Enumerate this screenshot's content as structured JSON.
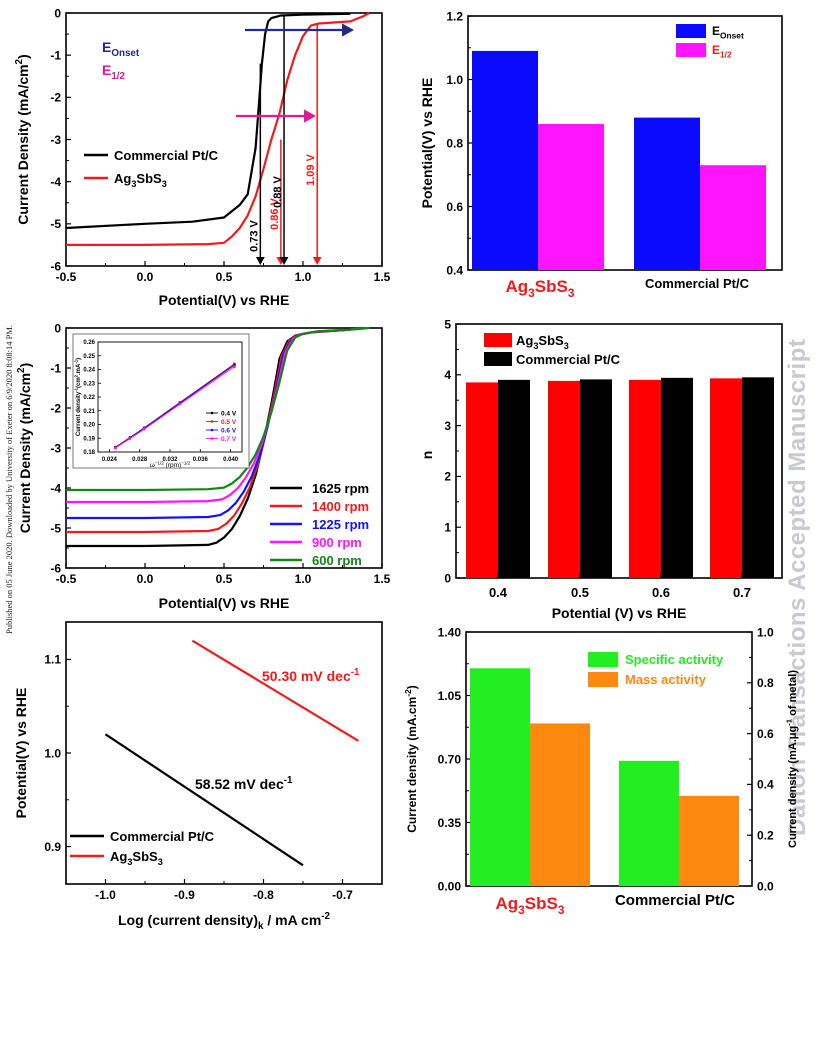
{
  "side_note": "Published on 05 June 2020. Downloaded by University of Exeter on 6/9/2020 8:08:14 PM.",
  "watermark": "Dalton Transactions Accepted Manuscript",
  "chart_data": [
    {
      "id": "lsv",
      "type": "line",
      "xlabel": "Potential(V) vs RHE",
      "ylabel": "Current Density  (mA/cm",
      "ylabel_sup": "2",
      "ylabel_end": ")",
      "xlim": [
        -0.5,
        1.5
      ],
      "ylim": [
        -6,
        0
      ],
      "xticks": [
        -0.5,
        0.0,
        0.5,
        1.0,
        1.5
      ],
      "xtick_labels": [
        "-0.5",
        "0.0",
        "0.5",
        "1.0",
        "1.5"
      ],
      "yticks": [
        0,
        -1,
        -2,
        -3,
        -4,
        -5,
        -6
      ],
      "ytick_labels": [
        "0",
        "-1",
        "-2",
        "-3",
        "-4",
        "-5",
        "-6"
      ],
      "series": [
        {
          "name": "Commercial Pt/C",
          "color": "#000000",
          "x": [
            -0.5,
            0.0,
            0.3,
            0.5,
            0.6,
            0.65,
            0.7,
            0.72,
            0.74,
            0.76,
            0.78,
            0.8,
            0.83,
            0.86,
            1.0,
            1.3
          ],
          "y": [
            -5.1,
            -5.0,
            -4.95,
            -4.85,
            -4.55,
            -4.3,
            -3.2,
            -2.2,
            -1.2,
            -0.5,
            -0.2,
            -0.12,
            -0.09,
            -0.06,
            -0.04,
            -0.02
          ]
        },
        {
          "name": "Ag3SbS3",
          "color": "#ee1c1c",
          "x": [
            -0.5,
            0.0,
            0.4,
            0.5,
            0.55,
            0.6,
            0.65,
            0.7,
            0.75,
            0.8,
            0.85,
            0.9,
            0.95,
            1.0,
            1.05,
            1.1,
            1.3,
            1.38,
            1.42
          ],
          "y": [
            -5.5,
            -5.5,
            -5.48,
            -5.45,
            -5.3,
            -5.1,
            -4.8,
            -4.35,
            -3.7,
            -3.0,
            -2.4,
            -1.6,
            -1.0,
            -0.55,
            -0.3,
            -0.25,
            -0.2,
            -0.08,
            0.0
          ]
        }
      ],
      "annotations": [
        {
          "text": "E",
          "sub": "Onset",
          "color": "#1f2a8a"
        },
        {
          "text": "E",
          "sub": "1/2",
          "color": "#e0199b"
        }
      ],
      "markers": [
        {
          "label": "0.73 V",
          "x": 0.73,
          "color": "#000000"
        },
        {
          "label": "0.86 V",
          "x": 0.86,
          "color": "#ee1c1c"
        },
        {
          "label": "0.88 V",
          "x": 0.88,
          "color": "#000000"
        },
        {
          "label": "1.09 V",
          "x": 1.09,
          "color": "#ee1c1c"
        }
      ]
    },
    {
      "id": "bar-onset",
      "type": "bar",
      "ylabel": "Potential(V) vs RHE",
      "ylim": [
        0.4,
        1.2
      ],
      "yticks": [
        0.4,
        0.6,
        0.8,
        1.0,
        1.2
      ],
      "ytick_labels": [
        "0.4",
        "0.6",
        "0.8",
        "1.0",
        "1.2"
      ],
      "categories": [
        {
          "label": "Ag",
          "parts": [
            [
              "Ag",
              ""
            ],
            [
              "3",
              "sub"
            ],
            [
              "SbS",
              ""
            ],
            [
              "3",
              "sub"
            ]
          ],
          "color": "#ee1c1c"
        },
        {
          "label": "Commercial Pt/C",
          "parts": [
            [
              "Commercial Pt/C",
              ""
            ]
          ],
          "color": "#000000"
        }
      ],
      "series": [
        {
          "name": "E",
          "sub": "Onset",
          "color": "#0a0aff",
          "values": [
            1.09,
            0.88
          ]
        },
        {
          "name": "E",
          "sub": "1/2",
          "color": "#ff14ff",
          "values": [
            0.86,
            0.73
          ]
        }
      ],
      "legend": "top-right"
    },
    {
      "id": "rde",
      "type": "line",
      "xlabel": "Potential(V) vs RHE",
      "ylabel": "Current Density  (mA/cm",
      "ylabel_sup": "2",
      "ylabel_end": ")",
      "xlim": [
        -0.5,
        1.5
      ],
      "ylim": [
        -6,
        0
      ],
      "xticks": [
        -0.5,
        0.0,
        0.5,
        1.0,
        1.5
      ],
      "xtick_labels": [
        "-0.5",
        "0.0",
        "0.5",
        "1.0",
        "1.5"
      ],
      "yticks": [
        0,
        -1,
        -2,
        -3,
        -4,
        -5,
        -6
      ],
      "ytick_labels": [
        "0",
        "-1",
        "-2",
        "-3",
        "-4",
        "-5",
        "-6"
      ],
      "series": [
        {
          "name": "1625 rpm",
          "color": "#000000",
          "limit": -5.45
        },
        {
          "name": "1400 rpm",
          "color": "#ee1c1c",
          "limit": -5.1
        },
        {
          "name": "1225 rpm",
          "color": "#1414ee",
          "limit": -4.75
        },
        {
          "name": "900 rpm",
          "color": "#ff14ff",
          "limit": -4.35
        },
        {
          "name": "600 rpm",
          "color": "#118811",
          "limit": -4.05
        }
      ],
      "curve_shape": {
        "x": [
          -0.5,
          0.0,
          0.4,
          0.5,
          0.55,
          0.6,
          0.65,
          0.7,
          0.75,
          0.8,
          0.85,
          0.88,
          0.9,
          0.95,
          1.0,
          1.1,
          1.3,
          1.42
        ],
        "frac": [
          1.0,
          1.0,
          0.995,
          0.985,
          0.96,
          0.92,
          0.86,
          0.78,
          0.67,
          0.52,
          0.34,
          0.22,
          0.14,
          0.06,
          0.035,
          0.02,
          0.01,
          0.0
        ]
      },
      "inset": {
        "xlabel": "ω",
        "xlabel_sup": "−1/2",
        "xlabel_end": " (rpm)",
        "xlabel_end_sup": "−1/2",
        "ylabel": "Current density",
        "ylabel_sup": "-1",
        "ylabel_end": "(cm",
        "ylabel_end_sup": "2",
        "ylabel_tail": ".mA",
        "ylabel_tail_sup": "-1",
        "ylabel_close": ")",
        "xlim": [
          0.0225,
          0.0415
        ],
        "ylim": [
          0.18,
          0.26
        ],
        "xticks": [
          0.024,
          0.028,
          0.032,
          0.036,
          0.04
        ],
        "xtick_labels": [
          "0.024",
          "0.028",
          "0.032",
          "0.036",
          "0.040"
        ],
        "yticks": [
          0.18,
          0.19,
          0.2,
          0.21,
          0.22,
          0.23,
          0.24,
          0.25,
          0.26
        ],
        "ytick_labels": [
          "0.18",
          "0.19",
          "0.20",
          "0.21",
          "0.22",
          "0.23",
          "0.24",
          "0.25",
          "0.26"
        ],
        "x": [
          0.0248,
          0.0267,
          0.0286,
          0.0333,
          0.0405
        ],
        "series": [
          {
            "name": "0.4 V",
            "color": "#000000",
            "y": [
              0.1835,
              0.1905,
              0.1975,
              0.216,
              0.244
            ]
          },
          {
            "name": "0.5 V",
            "color": "#ee1c1c",
            "y": [
              0.1832,
              0.1902,
              0.1972,
              0.2157,
              0.2437
            ]
          },
          {
            "name": "0.6 V",
            "color": "#1414ee",
            "y": [
              0.183,
              0.19,
              0.197,
              0.2154,
              0.2432
            ]
          },
          {
            "name": "0.7 V",
            "color": "#ff14ff",
            "y": [
              0.1828,
              0.1897,
              0.1966,
              0.2148,
              0.242
            ]
          }
        ]
      }
    },
    {
      "id": "bar-n",
      "type": "bar",
      "ylabel": "n",
      "xlabel": "Potential (V) vs RHE",
      "ylim": [
        0,
        5
      ],
      "yticks": [
        0,
        1,
        2,
        3,
        4,
        5
      ],
      "ytick_labels": [
        "0",
        "1",
        "2",
        "3",
        "4",
        "5"
      ],
      "categories": [
        "0.4",
        "0.5",
        "0.6",
        "0.7"
      ],
      "series": [
        {
          "name": "Ag3SbS3",
          "color": "#ff0000",
          "values": [
            3.85,
            3.88,
            3.9,
            3.93
          ]
        },
        {
          "name": "Commercial Pt/C",
          "color": "#000000",
          "values": [
            3.9,
            3.91,
            3.94,
            3.95
          ]
        }
      ],
      "legend": "top-left"
    },
    {
      "id": "tafel",
      "type": "line",
      "xlabel": "Log (current density)",
      "xlabel_sub": "k",
      "xlabel_end": " / mA cm",
      "xlabel_sup": "-2",
      "ylabel": "Potential(V) vs RHE",
      "xlim": [
        -1.05,
        -0.65
      ],
      "ylim": [
        0.86,
        1.14
      ],
      "xticks": [
        -1.0,
        -0.9,
        -0.8,
        -0.7
      ],
      "xtick_labels": [
        "-1.0",
        "-0.9",
        "-0.8",
        "-0.7"
      ],
      "yticks": [
        0.9,
        1.0,
        1.1
      ],
      "ytick_labels": [
        "0.9",
        "1.0",
        "1.1"
      ],
      "series": [
        {
          "name": "Commercial Pt/C",
          "color": "#000000",
          "x": [
            -1.0,
            -0.75
          ],
          "y": [
            1.02,
            0.88
          ]
        },
        {
          "name": "Ag3SbS3",
          "color": "#ee1c1c",
          "x": [
            -0.89,
            -0.68
          ],
          "y": [
            1.12,
            1.013
          ]
        }
      ],
      "annotations": [
        {
          "text": "50.30 mV dec",
          "sup": "-1",
          "color": "#ee1c1c"
        },
        {
          "text": "58.52 mV dec",
          "sup": "-1",
          "color": "#000000"
        }
      ]
    },
    {
      "id": "bar-activity",
      "type": "bar",
      "ylabel": "Current density (mA.cm",
      "ylabel_sup": "-2",
      "ylabel_end": ")",
      "y2label": "Current density (mA.μg",
      "y2label_sup": "-1",
      "y2label_end": " of metal)",
      "ylim": [
        0,
        1.4
      ],
      "yticks": [
        0.0,
        0.35,
        0.7,
        1.05,
        1.4
      ],
      "ytick_labels": [
        "0.00",
        "0.35",
        "0.70",
        "1.05",
        "1.40"
      ],
      "y2lim": [
        0,
        1.0
      ],
      "y2ticks": [
        0.0,
        0.2,
        0.4,
        0.6,
        0.8,
        1.0
      ],
      "y2tick_labels": [
        "0.0",
        "0.2",
        "0.4",
        "0.6",
        "0.8",
        "1.0"
      ],
      "categories": [
        {
          "label": "Ag",
          "parts": [
            [
              "Ag",
              ""
            ],
            [
              "3",
              "sub"
            ],
            [
              "SbS",
              ""
            ],
            [
              "3",
              "sub"
            ]
          ],
          "color": "#ee1c1c"
        },
        {
          "label": "Commercial Pt/C",
          "parts": [
            [
              "Commercial Pt/C",
              ""
            ]
          ],
          "color": "#000000"
        }
      ],
      "series": [
        {
          "name": "Specific activity",
          "color": "#22ee22",
          "axis": "left",
          "values": [
            1.2,
            0.69
          ]
        },
        {
          "name": "Mass activity",
          "color": "#ff8811",
          "axis": "right",
          "values": [
            0.64,
            0.355
          ]
        }
      ],
      "legend": "top-right"
    }
  ]
}
